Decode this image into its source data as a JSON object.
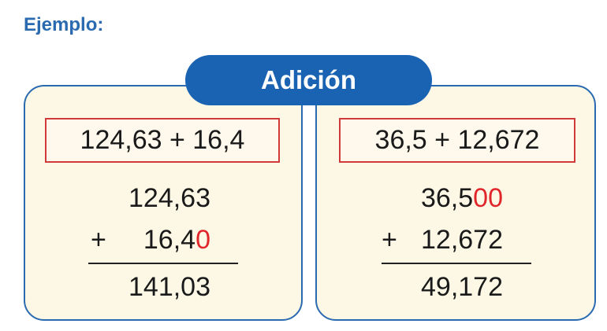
{
  "label": "Ejemplo:",
  "title": "Adición",
  "examples": [
    {
      "expression": "124,63 + 16,4",
      "addend1": {
        "digits": "124,63"
      },
      "addend2": {
        "sign": "+",
        "digits": "16,4",
        "added": "0"
      },
      "result": "141,03"
    },
    {
      "expression": "36,5 + 12,672",
      "addend1": {
        "digits": "36,5",
        "added": "00"
      },
      "addend2": {
        "sign": "+",
        "digits": "12,672"
      },
      "result": "49,172"
    }
  ]
}
